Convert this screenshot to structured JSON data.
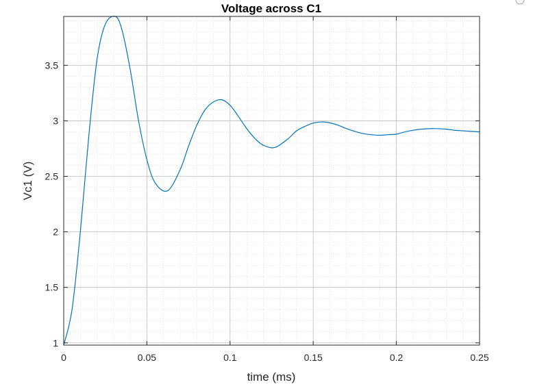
{
  "chart_data": {
    "type": "line",
    "title": "Voltage across C1",
    "xlabel": "time (ms)",
    "ylabel": "Vc1 (V)",
    "xlim": [
      0,
      0.25
    ],
    "ylim": [
      0.98,
      3.94
    ],
    "xticks": [
      0,
      0.05,
      0.1,
      0.15,
      0.2,
      0.25
    ],
    "xtick_labels": [
      "0",
      "0.05",
      "0.1",
      "0.15",
      "0.2",
      "0.25"
    ],
    "yticks": [
      1,
      1.5,
      2,
      2.5,
      3,
      3.5
    ],
    "ytick_labels": [
      "1",
      "1.5",
      "2",
      "2.5",
      "3",
      "3.5"
    ],
    "grid": true,
    "minor_grid": true,
    "line_color": "#0072BD",
    "series": [
      {
        "x": [
          0,
          0.005,
          0.01,
          0.015,
          0.02,
          0.025,
          0.031,
          0.035,
          0.04,
          0.045,
          0.05,
          0.055,
          0.0625,
          0.07,
          0.075,
          0.08,
          0.085,
          0.09,
          0.095,
          0.1,
          0.105,
          0.11,
          0.115,
          0.12,
          0.127,
          0.135,
          0.14,
          0.145,
          0.15,
          0.155,
          0.159,
          0.165,
          0.17,
          0.175,
          0.18,
          0.185,
          0.19,
          0.195,
          0.2,
          0.205,
          0.21,
          0.215,
          0.222,
          0.23,
          0.235,
          0.24,
          0.245,
          0.25
        ],
        "y": [
          0.98,
          1.3,
          2.0,
          2.85,
          3.55,
          3.87,
          3.94,
          3.82,
          3.46,
          3.0,
          2.65,
          2.44,
          2.37,
          2.56,
          2.77,
          2.96,
          3.1,
          3.17,
          3.19,
          3.14,
          3.04,
          2.93,
          2.84,
          2.78,
          2.76,
          2.84,
          2.91,
          2.95,
          2.98,
          2.99,
          2.985,
          2.96,
          2.93,
          2.905,
          2.885,
          2.875,
          2.87,
          2.875,
          2.88,
          2.9,
          2.915,
          2.925,
          2.93,
          2.925,
          2.915,
          2.91,
          2.905,
          2.9
        ]
      }
    ]
  }
}
